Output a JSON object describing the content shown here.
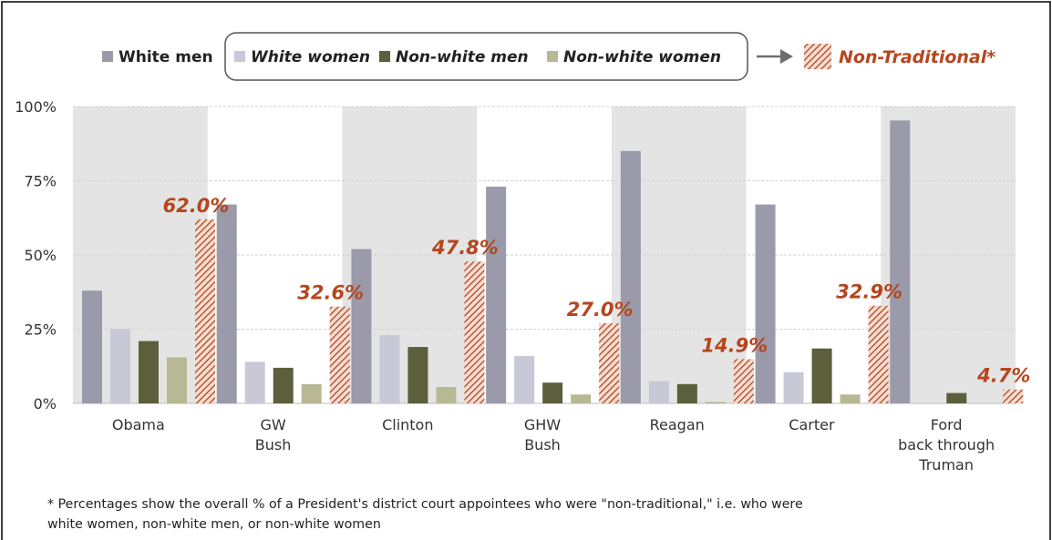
{
  "chart_data": {
    "type": "bar",
    "categories": [
      [
        "Obama"
      ],
      [
        "GW",
        "Bush"
      ],
      [
        "Clinton"
      ],
      [
        "GHW",
        "Bush"
      ],
      [
        "Reagan"
      ],
      [
        "Carter"
      ],
      [
        "Ford",
        "back through",
        "Truman"
      ]
    ],
    "series": [
      {
        "name": "White men",
        "color": "#9a9aaa",
        "values": [
          38,
          67,
          52,
          73,
          85,
          67,
          95.3
        ]
      },
      {
        "name": "White women",
        "color": "#c8c8d6",
        "values": [
          25,
          14,
          23,
          16,
          7.5,
          10.5,
          0
        ]
      },
      {
        "name": "Non-white men",
        "color": "#5c5e3c",
        "values": [
          21,
          12,
          19,
          7,
          6.5,
          18.5,
          3.5
        ]
      },
      {
        "name": "Non-white women",
        "color": "#b8b894",
        "values": [
          15.5,
          6.5,
          5.5,
          3,
          0.5,
          3,
          0
        ]
      },
      {
        "name": "Non-Traditional*",
        "color": "#b5461e",
        "pattern": "diagonal-hatch",
        "values": [
          62.0,
          32.6,
          47.8,
          27.0,
          14.9,
          32.9,
          4.7
        ]
      }
    ],
    "data_labels": [
      "62.0%",
      "32.6%",
      "47.8%",
      "27.0%",
      "14.9%",
      "32.9%",
      "4.7%"
    ],
    "y_ticks": [
      "0%",
      "25%",
      "50%",
      "75%",
      "100%"
    ],
    "ylim": [
      0,
      100
    ],
    "grid": true,
    "legend_position": "top",
    "footnote_lines": [
      "* Percentages show the overall % of a President's district court appointees who were \"non-traditional,\" i.e. who were",
      "white women, non-white men, or non-white women"
    ]
  }
}
